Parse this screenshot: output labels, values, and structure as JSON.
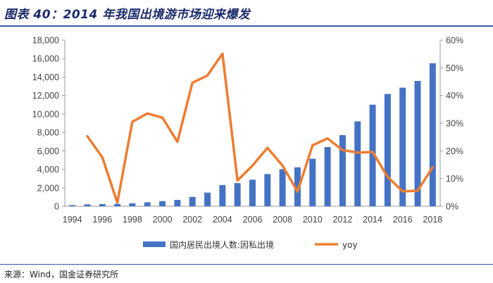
{
  "title": "图表 40：2014 年我国出境游市场迎来爆发",
  "source": "来源：Wind，国金证券研究所",
  "colors": {
    "bar": "#4472c4",
    "line": "#ed7d31",
    "accent": "#3a57a7"
  },
  "chart_data": {
    "type": "bar+line",
    "title": "2014 年我国出境游市场迎来爆发",
    "categories": [
      "1994",
      "1995",
      "1996",
      "1997",
      "1998",
      "1999",
      "2000",
      "2001",
      "2002",
      "2003",
      "2004",
      "2005",
      "2006",
      "2007",
      "2008",
      "2009",
      "2010",
      "2011",
      "2012",
      "2013",
      "2014",
      "2015",
      "2016",
      "2017",
      "2018"
    ],
    "series": [
      {
        "name": "国内居民出境人数:因私出境",
        "type": "bar",
        "axis": "left",
        "values": [
          120,
          200,
          240,
          250,
          320,
          430,
          560,
          690,
          1010,
          1480,
          2300,
          2510,
          2880,
          3490,
          4010,
          4220,
          5150,
          6410,
          7710,
          9200,
          11000,
          12170,
          12850,
          13580,
          15500
        ]
      },
      {
        "name": "yoy",
        "type": "line",
        "axis": "right",
        "values": [
          null,
          25.3,
          17.7,
          1.3,
          30.5,
          33.5,
          32.0,
          23.3,
          44.6,
          47.2,
          55.1,
          9.3,
          14.7,
          21.1,
          14.7,
          5.3,
          22.0,
          24.5,
          20.3,
          19.4,
          19.6,
          10.6,
          5.4,
          5.6,
          14.1
        ]
      }
    ],
    "y_left": {
      "min": 0,
      "max": 18000,
      "step": 2000,
      "ticks": [
        "0",
        "2,000",
        "4,000",
        "6,000",
        "8,000",
        "10,000",
        "12,000",
        "14,000",
        "16,000",
        "18,000"
      ]
    },
    "y_right": {
      "min": 0,
      "max": 60,
      "step": 10,
      "ticks": [
        "0%",
        "10%",
        "20%",
        "30%",
        "40%",
        "50%",
        "60%"
      ]
    },
    "x_tick_labels": [
      "1994",
      "1996",
      "1998",
      "2000",
      "2002",
      "2004",
      "2006",
      "2008",
      "2010",
      "2012",
      "2014",
      "2016",
      "2018"
    ],
    "legend": [
      {
        "label": "国内居民出境人数:因私出境",
        "kind": "bar"
      },
      {
        "label": "yoy",
        "kind": "line"
      }
    ],
    "legend_position": "bottom",
    "grid": false
  }
}
